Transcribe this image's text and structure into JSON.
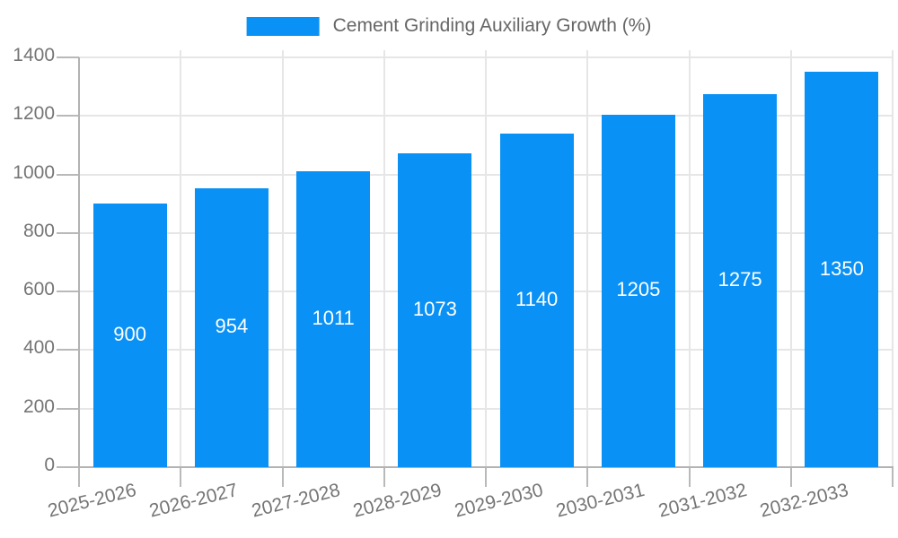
{
  "chart_data": {
    "type": "bar",
    "legend": "Cement Grinding Auxiliary Growth (%)",
    "legend_position": "top",
    "categories": [
      "2025-2026",
      "2026-2027",
      "2027-2028",
      "2028-2029",
      "2029-2030",
      "2030-2031",
      "2031-2032",
      "2032-2033"
    ],
    "values": [
      900,
      954,
      1011,
      1073,
      1140,
      1205,
      1275,
      1350
    ],
    "value_labels_shown": true,
    "xlabel": "",
    "ylabel": "",
    "ylim": [
      0,
      1400
    ],
    "ytick_step": 200,
    "grid": true,
    "colors": {
      "bar": "#0991f5",
      "value_label": "#ffffff",
      "axis_text": "#757575",
      "legend_text": "#666666",
      "gridline": "#e6e6e6",
      "axis_line": "#b3b3b3"
    }
  }
}
